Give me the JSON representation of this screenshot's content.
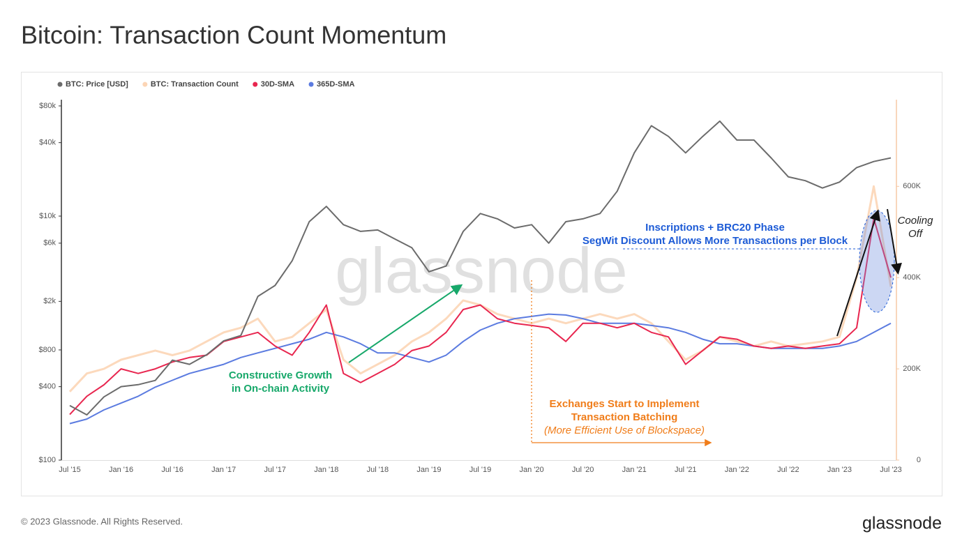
{
  "chart_data": {
    "type": "line",
    "title": "Bitcoin: Transaction Count Momentum",
    "footer": "© 2023 Glassnode. All Rights Reserved.",
    "brand": "glassnode",
    "watermark": "glassnode",
    "yscale": "log",
    "legend": "top-left",
    "categories": [
      "Jul '15",
      null,
      null,
      "Jan '16",
      null,
      null,
      "Jul '16",
      null,
      null,
      "Jan '17",
      null,
      null,
      "Jul '17",
      null,
      null,
      "Jan '18",
      null,
      null,
      "Jul '18",
      null,
      null,
      "Jan '19",
      null,
      null,
      "Jul '19",
      null,
      null,
      "Jan '20",
      null,
      null,
      "Jul '20",
      null,
      null,
      "Jan '21",
      null,
      null,
      "Jul '21",
      null,
      null,
      "Jan '22",
      null,
      null,
      "Jul '22",
      null,
      null,
      "Jan '23",
      null,
      null,
      "Jul '23"
    ],
    "ylim": [
      100,
      90000
    ],
    "yticks": [
      {
        "value": 100,
        "label": "$100"
      },
      {
        "value": 400,
        "label": "$400"
      },
      {
        "value": 800,
        "label": "$800"
      },
      {
        "value": 2000,
        "label": "$2k"
      },
      {
        "value": 6000,
        "label": "$6k"
      },
      {
        "value": 10000,
        "label": "$10k"
      },
      {
        "value": 40000,
        "label": "$40k"
      },
      {
        "value": 80000,
        "label": "$80k"
      }
    ],
    "y2lim": [
      0,
      790000
    ],
    "y2ticks": [
      0,
      {
        "value": 200000,
        "label": "200K"
      },
      {
        "value": 400000,
        "label": "400K"
      },
      {
        "value": 600000,
        "label": "600K"
      }
    ],
    "series": [
      {
        "name": "BTC: Price [USD]",
        "color": "#6b6b6b",
        "values": [
          280,
          235,
          330,
          400,
          415,
          450,
          660,
          610,
          730,
          950,
          1050,
          2200,
          2700,
          4300,
          9000,
          12000,
          8500,
          7500,
          7700,
          6500,
          5500,
          3500,
          3900,
          7500,
          10500,
          9500,
          8000,
          8500,
          6000,
          9000,
          9500,
          10500,
          16000,
          33000,
          55000,
          45000,
          33000,
          45000,
          60000,
          42000,
          42000,
          30000,
          21000,
          19500,
          17000,
          19000,
          25000,
          28000,
          30000
        ]
      },
      {
        "name": "BTC: Transaction Count",
        "color": "#fcd5b5",
        "axis": "y2",
        "values": [
          150000,
          190000,
          200000,
          220000,
          230000,
          240000,
          230000,
          240000,
          260000,
          280000,
          290000,
          310000,
          260000,
          270000,
          300000,
          330000,
          220000,
          190000,
          210000,
          230000,
          260000,
          280000,
          310000,
          350000,
          340000,
          320000,
          310000,
          300000,
          310000,
          300000,
          310000,
          320000,
          310000,
          320000,
          300000,
          260000,
          220000,
          240000,
          270000,
          260000,
          250000,
          260000,
          250000,
          255000,
          260000,
          270000,
          400000,
          600000,
          380000
        ]
      },
      {
        "name": "30D-SMA",
        "color": "#e8264f",
        "axis": "y2",
        "values": [
          100000,
          140000,
          165000,
          200000,
          190000,
          200000,
          215000,
          225000,
          230000,
          260000,
          270000,
          280000,
          250000,
          230000,
          280000,
          340000,
          190000,
          170000,
          190000,
          210000,
          240000,
          250000,
          280000,
          330000,
          340000,
          310000,
          300000,
          295000,
          290000,
          260000,
          300000,
          300000,
          290000,
          300000,
          280000,
          270000,
          210000,
          240000,
          270000,
          265000,
          250000,
          245000,
          250000,
          245000,
          250000,
          255000,
          290000,
          530000,
          400000
        ]
      },
      {
        "name": "365D-SMA",
        "color": "#5b7be0",
        "axis": "y2",
        "values": [
          80000,
          90000,
          110000,
          125000,
          140000,
          160000,
          175000,
          190000,
          200000,
          210000,
          225000,
          235000,
          245000,
          255000,
          265000,
          280000,
          270000,
          255000,
          235000,
          235000,
          225000,
          215000,
          230000,
          260000,
          285000,
          300000,
          310000,
          315000,
          320000,
          318000,
          310000,
          300000,
          300000,
          300000,
          295000,
          290000,
          280000,
          265000,
          255000,
          255000,
          250000,
          245000,
          245000,
          245000,
          245000,
          250000,
          260000,
          280000,
          300000
        ]
      }
    ],
    "annotations": [
      {
        "text": "Inscriptions + BRC20 Phase",
        "color": "#1d5bd6"
      },
      {
        "text": "SegWit Discount Allows More Transactions per Block",
        "color": "#1d5bd6"
      },
      {
        "text": "Constructive Growth",
        "color": "#17a86a"
      },
      {
        "text": "in On-chain Activity",
        "color": "#17a86a"
      },
      {
        "text": "Exchanges Start to Implement",
        "color": "#f07d1a"
      },
      {
        "text": "Transaction Batching",
        "color": "#f07d1a"
      },
      {
        "text": "(More Efficient Use of Blockspace)",
        "color": "#f07d1a"
      },
      {
        "text": "Cooling",
        "color": "#222222"
      },
      {
        "text": "Off",
        "color": "#222222"
      }
    ]
  }
}
